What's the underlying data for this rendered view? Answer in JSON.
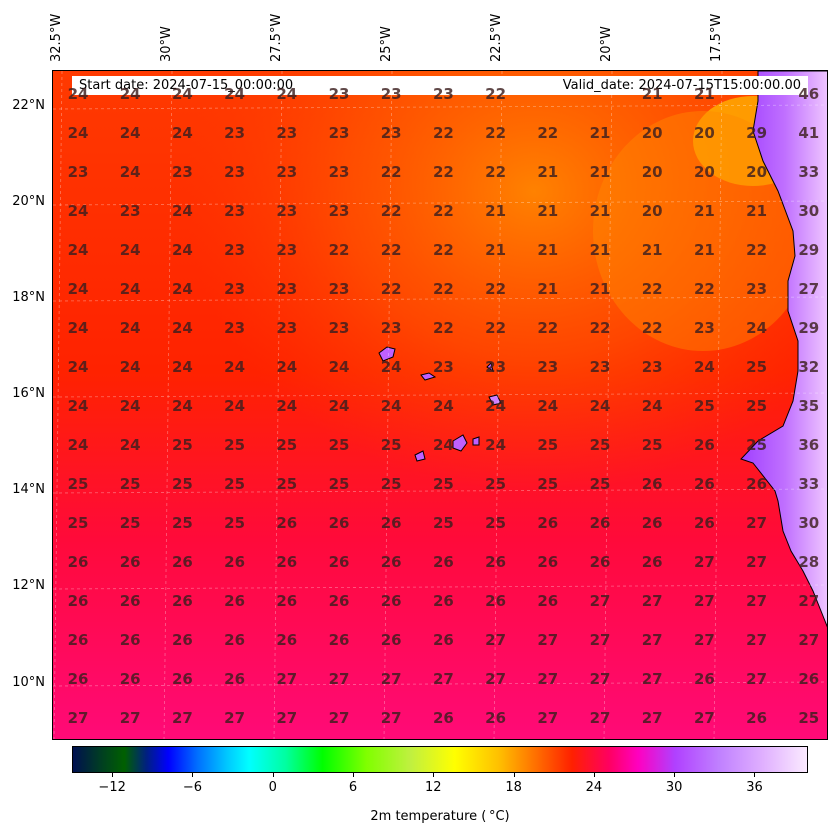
{
  "header": {
    "start_date": "Start date: 2024-07-15_00:00:00",
    "valid_date": "Valid_date: 2024-07-15T15:00:00.00"
  },
  "longitude_labels": [
    "32.5°W",
    "30°W",
    "27.5°W",
    "25°W",
    "22.5°W",
    "20°W",
    "17.5°W"
  ],
  "latitude_labels": [
    "22°N",
    "20°N",
    "18°N",
    "16°N",
    "14°N",
    "12°N",
    "10°N"
  ],
  "colorbar": {
    "title": "2m temperature ( °C)",
    "ticks": [
      "−12",
      "−6",
      "0",
      "6",
      "12",
      "18",
      "24",
      "30",
      "36"
    ],
    "tick_values": [
      -12,
      -6,
      0,
      6,
      12,
      18,
      24,
      30,
      36
    ],
    "range": [
      -15,
      40
    ]
  },
  "grid_values": [
    [
      "24",
      "24",
      "24",
      "24",
      "24",
      "23",
      "23",
      "23",
      "22",
      "",
      "",
      "21",
      "21",
      "",
      "46"
    ],
    [
      "24",
      "24",
      "24",
      "23",
      "23",
      "23",
      "23",
      "22",
      "22",
      "22",
      "21",
      "20",
      "20",
      "29",
      "41"
    ],
    [
      "23",
      "24",
      "23",
      "23",
      "23",
      "23",
      "22",
      "22",
      "22",
      "21",
      "21",
      "20",
      "20",
      "20",
      "33"
    ],
    [
      "24",
      "23",
      "24",
      "23",
      "23",
      "23",
      "22",
      "22",
      "21",
      "21",
      "21",
      "20",
      "21",
      "21",
      "30"
    ],
    [
      "24",
      "24",
      "24",
      "23",
      "23",
      "22",
      "22",
      "22",
      "21",
      "21",
      "21",
      "21",
      "21",
      "22",
      "29"
    ],
    [
      "24",
      "24",
      "24",
      "23",
      "23",
      "23",
      "22",
      "22",
      "22",
      "21",
      "21",
      "22",
      "22",
      "23",
      "27"
    ],
    [
      "24",
      "24",
      "24",
      "23",
      "23",
      "23",
      "23",
      "22",
      "22",
      "22",
      "22",
      "22",
      "23",
      "24",
      "29"
    ],
    [
      "24",
      "24",
      "24",
      "24",
      "24",
      "24",
      "24",
      "23",
      "23",
      "23",
      "23",
      "23",
      "24",
      "25",
      "32"
    ],
    [
      "24",
      "24",
      "24",
      "24",
      "24",
      "24",
      "24",
      "24",
      "24",
      "24",
      "24",
      "24",
      "25",
      "25",
      "35"
    ],
    [
      "24",
      "24",
      "25",
      "25",
      "25",
      "25",
      "25",
      "24",
      "24",
      "25",
      "25",
      "25",
      "26",
      "25",
      "36"
    ],
    [
      "25",
      "25",
      "25",
      "25",
      "25",
      "25",
      "25",
      "25",
      "25",
      "25",
      "25",
      "26",
      "26",
      "26",
      "33"
    ],
    [
      "25",
      "25",
      "25",
      "25",
      "26",
      "26",
      "26",
      "25",
      "25",
      "26",
      "26",
      "26",
      "26",
      "27",
      "30"
    ],
    [
      "26",
      "26",
      "26",
      "26",
      "26",
      "26",
      "26",
      "26",
      "26",
      "26",
      "26",
      "26",
      "27",
      "27",
      "28"
    ],
    [
      "26",
      "26",
      "26",
      "26",
      "26",
      "26",
      "26",
      "26",
      "26",
      "26",
      "27",
      "27",
      "27",
      "27",
      "27"
    ],
    [
      "26",
      "26",
      "26",
      "26",
      "26",
      "26",
      "26",
      "26",
      "27",
      "27",
      "27",
      "27",
      "27",
      "27",
      "27"
    ],
    [
      "26",
      "26",
      "26",
      "26",
      "27",
      "27",
      "27",
      "27",
      "27",
      "27",
      "27",
      "27",
      "26",
      "27",
      "26"
    ],
    [
      "27",
      "27",
      "27",
      "27",
      "27",
      "27",
      "27",
      "26",
      "26",
      "27",
      "27",
      "27",
      "27",
      "26",
      "25"
    ]
  ],
  "colors": {
    "ocean_warm": "#ff2a00",
    "ocean_cool": "#ff6400",
    "ocean_hot": "#ff0a70",
    "land_hot": "#b04dff",
    "land_very_hot": "#f0c0ff",
    "desert_coast": "#ffc000"
  }
}
